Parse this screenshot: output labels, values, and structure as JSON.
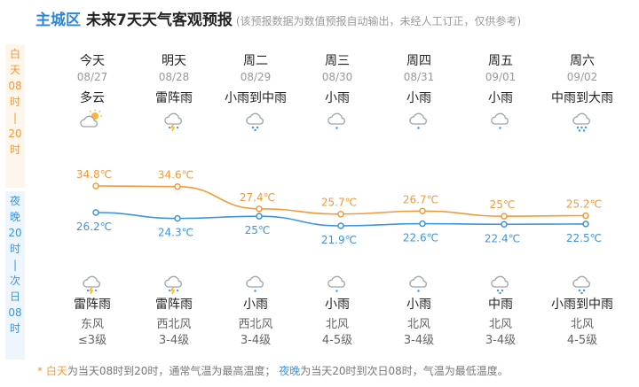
{
  "header": {
    "area": "主城区",
    "title": "未来7天天气客观预报",
    "note": "(该预报数据为数值预报自动输出，未经人工订正，仅供参考)"
  },
  "side": {
    "day": [
      "白",
      "天",
      "08",
      "时",
      "|",
      "20",
      "时"
    ],
    "night": [
      "夜",
      "晚",
      "20",
      "时",
      "|",
      "次",
      "日",
      "08",
      "时"
    ]
  },
  "days": [
    {
      "name": "今天",
      "date": "08/27",
      "day_cond": "多云",
      "day_icon": "partly-cloudy-icon",
      "high": "34.8℃",
      "low": "26.2℃",
      "night_cond": "雷阵雨",
      "night_icon": "thunderstorm-icon",
      "wind_dir": "东风",
      "wind_level": "≤3级"
    },
    {
      "name": "明天",
      "date": "08/28",
      "day_cond": "雷阵雨",
      "day_icon": "thunderstorm-icon",
      "high": "34.6℃",
      "low": "24.3℃",
      "night_cond": "雷阵雨",
      "night_icon": "thunderstorm-icon",
      "wind_dir": "西北风",
      "wind_level": "3-4级"
    },
    {
      "name": "周二",
      "date": "08/29",
      "day_cond": "小雨到中雨",
      "day_icon": "moderate-rain-icon",
      "high": "27.4℃",
      "low": "25℃",
      "night_cond": "小雨",
      "night_icon": "light-rain-icon",
      "wind_dir": "西北风",
      "wind_level": "3-4级"
    },
    {
      "name": "周三",
      "date": "08/30",
      "day_cond": "小雨",
      "day_icon": "light-rain-icon",
      "high": "25.7℃",
      "low": "21.9℃",
      "night_cond": "小雨",
      "night_icon": "light-rain-icon",
      "wind_dir": "北风",
      "wind_level": "4-5级"
    },
    {
      "name": "周四",
      "date": "08/31",
      "day_cond": "小雨",
      "day_icon": "light-rain-icon",
      "high": "26.7℃",
      "low": "22.6℃",
      "night_cond": "小雨",
      "night_icon": "light-rain-icon",
      "wind_dir": "北风",
      "wind_level": "3-4级"
    },
    {
      "name": "周五",
      "date": "09/01",
      "day_cond": "小雨",
      "day_icon": "light-rain-icon",
      "high": "25℃",
      "low": "22.4℃",
      "night_cond": "中雨",
      "night_icon": "moderate-rain-icon",
      "wind_dir": "北风",
      "wind_level": "3-4级"
    },
    {
      "name": "周六",
      "date": "09/02",
      "day_cond": "中雨到大雨",
      "day_icon": "heavy-rain-icon",
      "high": "25.2℃",
      "low": "22.5℃",
      "night_cond": "小雨到中雨",
      "night_icon": "moderate-rain-icon",
      "wind_dir": "北风",
      "wind_level": "4-5级"
    }
  ],
  "chart_data": {
    "type": "line",
    "categories": [
      "08/27",
      "08/28",
      "08/29",
      "08/30",
      "08/31",
      "09/01",
      "09/02"
    ],
    "series": [
      {
        "name": "白天",
        "values": [
          34.8,
          34.6,
          27.4,
          25.7,
          26.7,
          25,
          25.2
        ],
        "color": "#f39a3a"
      },
      {
        "name": "夜晚",
        "values": [
          26.2,
          24.3,
          25,
          21.9,
          22.6,
          22.4,
          22.5
        ],
        "color": "#3d94e0"
      }
    ]
  },
  "footer": {
    "star": "* ",
    "day_word": "白天",
    "day_desc": "为当天08时到20时，通常气温为最高温度；",
    "night_word": "夜晚",
    "night_desc": "为当天20时到次日08时，气温为最低温度。"
  },
  "colors": {
    "accent": "#2f86d8",
    "day": "#f39a3a",
    "night": "#3d94e0"
  }
}
